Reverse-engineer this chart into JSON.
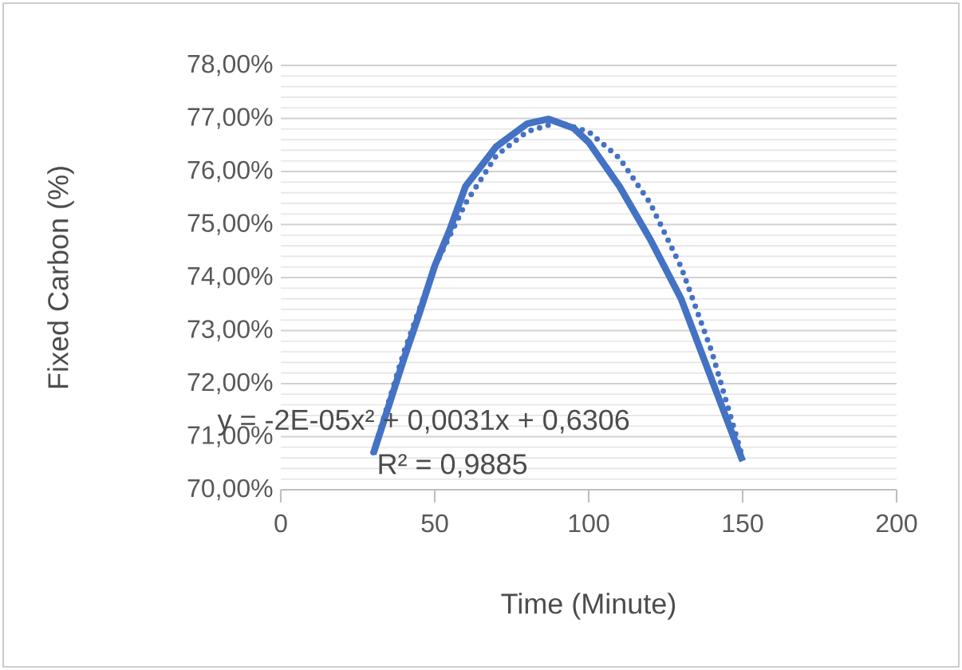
{
  "chart_data": {
    "type": "line",
    "xlabel": "Time (Minute)",
    "ylabel": "Fixed Carbon (%)",
    "xlim": [
      0,
      200
    ],
    "xticks": [
      0,
      50,
      100,
      150,
      200
    ],
    "ylim": [
      70,
      78
    ],
    "yticks": [
      {
        "value": 70,
        "label": "70,00%"
      },
      {
        "value": 71,
        "label": "71,00%"
      },
      {
        "value": 72,
        "label": "72,00%"
      },
      {
        "value": 73,
        "label": "73,00%"
      },
      {
        "value": 74,
        "label": "74,00%"
      },
      {
        "value": 75,
        "label": "75,00%"
      },
      {
        "value": 76,
        "label": "76,00%"
      },
      {
        "value": 77,
        "label": "77,00%"
      },
      {
        "value": 78,
        "label": "78,00%"
      }
    ],
    "grid": "y",
    "marker": "none",
    "series": [
      {
        "color": "#4472c4",
        "line_style": "solid",
        "x": [
          30,
          40,
          45,
          50,
          55,
          60,
          70,
          80,
          87,
          95,
          100,
          110,
          120,
          130,
          140,
          150
        ],
        "values": [
          70.67,
          72.47,
          73.32,
          74.22,
          74.92,
          75.72,
          76.47,
          76.9,
          76.99,
          76.82,
          76.55,
          75.72,
          74.72,
          73.6,
          72.07,
          70.54
        ]
      },
      {
        "color": "#4472c4",
        "line_style": "dotted",
        "x": [
          30,
          40,
          50,
          60,
          70,
          80,
          90,
          100,
          110,
          120,
          130,
          140,
          150
        ],
        "values": [
          70.7,
          72.6,
          74.2,
          75.4,
          76.3,
          76.75,
          76.93,
          76.75,
          76.25,
          75.4,
          74.2,
          72.6,
          70.6
        ]
      }
    ],
    "annotations": [
      "y = -2E-05x² + 0,0031x + 0,6306",
      "R² = 0,9885"
    ]
  }
}
